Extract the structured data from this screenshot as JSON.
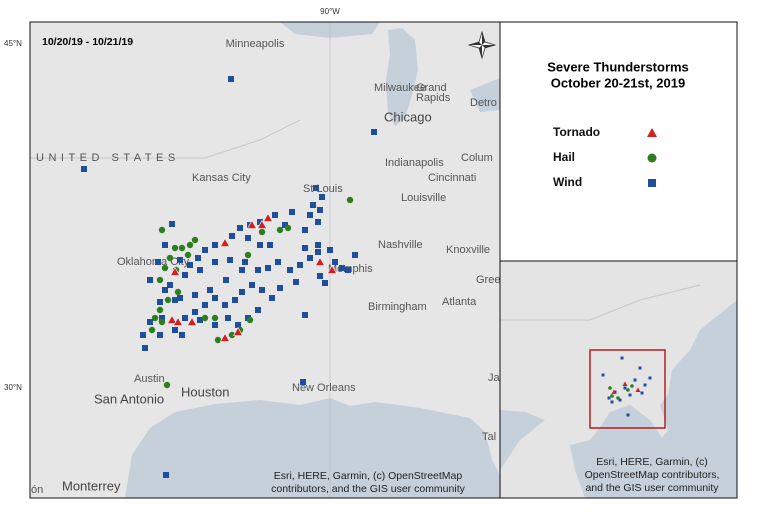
{
  "map": {
    "lon_label": "90°W",
    "lat_labels": [
      "45°N",
      "30°N"
    ],
    "date_range": "10/20/19 - 10/21/19",
    "places": [
      "Minneapolis",
      "Milwaukee",
      "Grand",
      "Rapids",
      "Detro",
      "Chicago",
      "UNITED STATES",
      "Indianapolis",
      "Colum",
      "Cincinnati",
      "Kansas City",
      "St Louis",
      "Louisville",
      "Nashville",
      "Knoxville",
      "Oklahoma City",
      "Memphis",
      "Gree",
      "Birmingham",
      "Atlanta",
      "Austin",
      "Houston",
      "New Orleans",
      "San Antonio",
      "Ja",
      "Tal",
      "Monterrey",
      "ón"
    ],
    "attribution": [
      "Esri, HERE, Garmin, (c) OpenStreetMap",
      "contributors, and the GIS user community"
    ]
  },
  "legend": {
    "title": "Severe Thunderstorms",
    "subtitle": "October 20-21st, 2019",
    "items": [
      "Tornado",
      "Hail",
      "Wind"
    ]
  },
  "inset": {
    "attribution": [
      "Esri, HERE, Garmin, (c)",
      "OpenStreetMap contributors,",
      "and the GIS user community"
    ]
  }
}
